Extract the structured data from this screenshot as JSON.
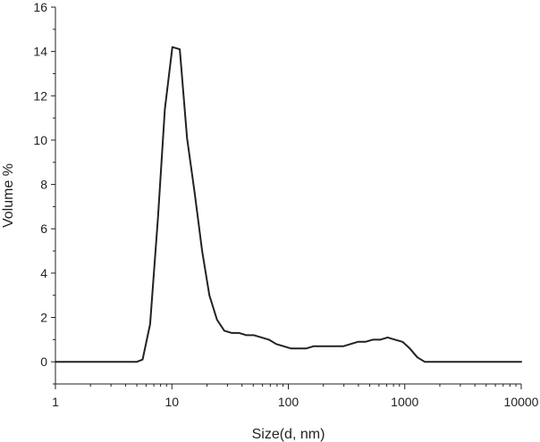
{
  "chart_data": {
    "type": "line",
    "title": "",
    "xlabel": "Size(d, nm)",
    "ylabel": "Volume %",
    "xscale": "log",
    "xlim": [
      1,
      10000
    ],
    "ylim": [
      -1,
      16
    ],
    "xticks": [
      {
        "value": 1,
        "label": "1"
      },
      {
        "value": 10,
        "label": "10"
      },
      {
        "value": 100,
        "label": "100"
      },
      {
        "value": 1000,
        "label": "1000"
      },
      {
        "value": 10000,
        "label": "10000"
      }
    ],
    "yticks": [
      {
        "value": 0,
        "label": "0"
      },
      {
        "value": 2,
        "label": "2"
      },
      {
        "value": 4,
        "label": "4"
      },
      {
        "value": 6,
        "label": "6"
      },
      {
        "value": 8,
        "label": "8"
      },
      {
        "value": 10,
        "label": "10"
      },
      {
        "value": 12,
        "label": "12"
      },
      {
        "value": 14,
        "label": "14"
      },
      {
        "value": 16,
        "label": "16"
      }
    ],
    "grid": false,
    "line_color": "#222222",
    "series": [
      {
        "x": [
          1,
          2,
          3,
          4,
          5,
          5.6,
          6.5,
          7.6,
          8.7,
          10.1,
          11.7,
          13.5,
          15.7,
          18.2,
          21,
          24.4,
          28.2,
          32.7,
          37.8,
          43.8,
          50.7,
          58.8,
          68.1,
          78.8,
          91.3,
          105.7,
          122.4,
          141.8,
          164.2,
          190.1,
          220.2,
          255,
          295.3,
          342,
          396.1,
          458.7,
          531.2,
          615.1,
          712.4,
          825,
          955.4,
          1106,
          1281,
          1484,
          1718,
          2000,
          3000,
          5000,
          10000
        ],
        "y": [
          0,
          0,
          0,
          0,
          0,
          0.1,
          1.7,
          6.5,
          11.4,
          14.2,
          14.1,
          10.1,
          7.6,
          5.0,
          3.0,
          1.9,
          1.4,
          1.3,
          1.3,
          1.2,
          1.2,
          1.1,
          1.0,
          0.8,
          0.7,
          0.6,
          0.6,
          0.6,
          0.7,
          0.7,
          0.7,
          0.7,
          0.7,
          0.8,
          0.9,
          0.9,
          1.0,
          1.0,
          1.1,
          1.0,
          0.9,
          0.6,
          0.2,
          0.0,
          0.0,
          0,
          0,
          0,
          0
        ]
      }
    ]
  }
}
